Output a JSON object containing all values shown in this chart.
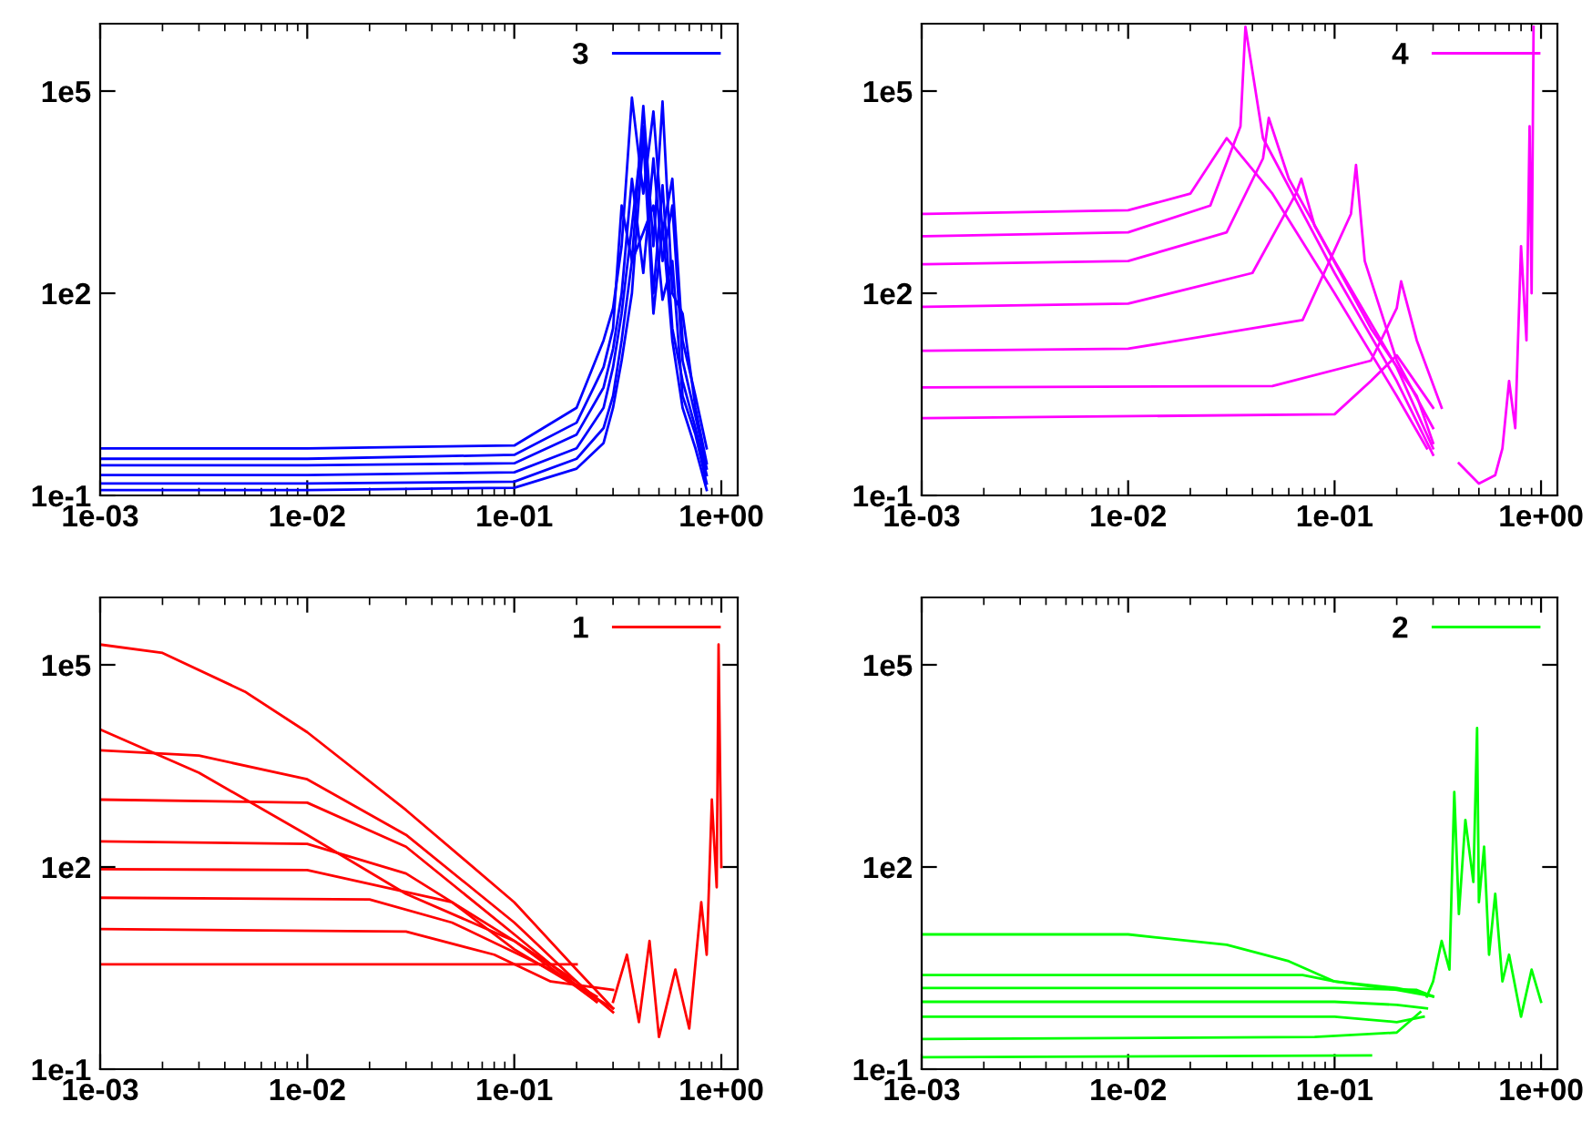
{
  "chart_data": [
    {
      "type": "line",
      "log": "xy",
      "grid": false,
      "legend": "top right",
      "xlim": [
        0.001,
        1.2
      ],
      "ylim": [
        0.1,
        1000000
      ],
      "xticks": [
        {
          "value": 0.001,
          "label": "1e-03"
        },
        {
          "value": 0.01,
          "label": "1e-02"
        },
        {
          "value": 0.1,
          "label": "1e-01"
        },
        {
          "value": 1,
          "label": "1e+00"
        }
      ],
      "yticks": [
        {
          "value": 0.1,
          "label": "1e-1"
        },
        {
          "value": 100,
          "label": "1e2"
        },
        {
          "value": 100000,
          "label": "1e5"
        }
      ],
      "series": [
        {
          "name": "3",
          "color": "#0000ff",
          "x": [
            0.001,
            0.01,
            0.1,
            0.2,
            0.27,
            0.3,
            0.33,
            0.37,
            0.42,
            0.47,
            0.52,
            0.58,
            0.65,
            0.75,
            0.85
          ],
          "values": [
            0.5,
            0.5,
            0.55,
            2,
            20,
            60,
            500,
            80000,
            3000,
            50000,
            800,
            5000,
            20,
            3,
            0.5
          ]
        },
        {
          "color": "#0000ff",
          "x": [
            0.001,
            0.01,
            0.1,
            0.2,
            0.27,
            0.3,
            0.33,
            0.37,
            0.42,
            0.47,
            0.52,
            0.58,
            0.65,
            0.75,
            0.85
          ],
          "values": [
            0.35,
            0.35,
            0.4,
            1.2,
            8,
            30,
            2000,
            300,
            60000,
            500,
            70000,
            100,
            50,
            2,
            0.3
          ]
        },
        {
          "color": "#0000ff",
          "x": [
            0.001,
            0.01,
            0.1,
            0.2,
            0.27,
            0.3,
            0.33,
            0.37,
            0.42,
            0.47,
            0.52,
            0.58,
            0.65,
            0.75,
            0.85
          ],
          "values": [
            0.28,
            0.28,
            0.3,
            0.8,
            4,
            15,
            100,
            5000,
            200,
            10000,
            300,
            2000,
            10,
            1.5,
            0.25
          ]
        },
        {
          "color": "#0000ff",
          "x": [
            0.001,
            0.01,
            0.1,
            0.2,
            0.27,
            0.3,
            0.33,
            0.37,
            0.42,
            0.47,
            0.52,
            0.58,
            0.65,
            0.75,
            0.85
          ],
          "values": [
            0.2,
            0.2,
            0.22,
            0.5,
            2,
            8,
            50,
            1000,
            30000,
            100,
            4000,
            30,
            5,
            1,
            0.2
          ]
        },
        {
          "color": "#0000ff",
          "x": [
            0.001,
            0.01,
            0.1,
            0.2,
            0.27,
            0.3,
            0.33,
            0.37,
            0.42,
            0.47,
            0.52,
            0.58,
            0.65,
            0.75,
            0.85
          ],
          "values": [
            0.15,
            0.15,
            0.16,
            0.35,
            1,
            3,
            20,
            300,
            800,
            2000,
            80,
            300,
            3,
            0.8,
            0.15
          ]
        },
        {
          "color": "#0000ff",
          "x": [
            0.001,
            0.01,
            0.1,
            0.2,
            0.27,
            0.3,
            0.33,
            0.37,
            0.42,
            0.47,
            0.52,
            0.58,
            0.65,
            0.75,
            0.85
          ],
          "values": [
            0.12,
            0.12,
            0.13,
            0.25,
            0.6,
            2,
            10,
            100,
            20000,
            50,
            1000,
            20,
            2,
            0.5,
            0.12
          ]
        }
      ]
    },
    {
      "type": "line",
      "log": "xy",
      "grid": false,
      "legend": "top right",
      "xlim": [
        0.001,
        1.2
      ],
      "ylim": [
        0.1,
        1000000
      ],
      "xticks": [
        {
          "value": 0.001,
          "label": "1e-03"
        },
        {
          "value": 0.01,
          "label": "1e-02"
        },
        {
          "value": 0.1,
          "label": "1e-01"
        },
        {
          "value": 1,
          "label": "1e+00"
        }
      ],
      "yticks": [
        {
          "value": 0.1,
          "label": "1e-1"
        },
        {
          "value": 100,
          "label": "1e2"
        },
        {
          "value": 100000,
          "label": "1e5"
        }
      ],
      "series": [
        {
          "name": "4",
          "color": "#ff00ff",
          "x": [
            0.001,
            0.01,
            0.02,
            0.03,
            0.05,
            0.1,
            0.2,
            0.28
          ],
          "values": [
            1500,
            1700,
            3000,
            20000,
            3000,
            100,
            3,
            0.5
          ]
        },
        {
          "color": "#ff00ff",
          "x": [
            0.001,
            0.01,
            0.025,
            0.035,
            0.037,
            0.045,
            0.1,
            0.2,
            0.3
          ],
          "values": [
            700,
            800,
            2000,
            30000,
            900000,
            20000,
            200,
            5,
            0.4
          ]
        },
        {
          "color": "#ff00ff",
          "x": [
            0.001,
            0.01,
            0.03,
            0.045,
            0.048,
            0.06,
            0.1,
            0.2,
            0.3
          ],
          "values": [
            270,
            300,
            800,
            10000,
            40000,
            5000,
            300,
            8,
            0.5
          ]
        },
        {
          "color": "#ff00ff",
          "x": [
            0.001,
            0.01,
            0.04,
            0.065,
            0.069,
            0.08,
            0.15,
            0.25,
            0.3
          ],
          "values": [
            63,
            70,
            200,
            3000,
            5000,
            1000,
            30,
            3,
            0.6
          ]
        },
        {
          "color": "#ff00ff",
          "x": [
            0.001,
            0.01,
            0.07,
            0.12,
            0.127,
            0.14,
            0.2,
            0.3
          ],
          "values": [
            14,
            15,
            40,
            1500,
            8000,
            300,
            10,
            1
          ]
        },
        {
          "color": "#ff00ff",
          "x": [
            0.001,
            0.05,
            0.15,
            0.2,
            0.21,
            0.25,
            0.33
          ],
          "values": [
            4,
            4.2,
            10,
            60,
            150,
            20,
            2
          ]
        },
        {
          "color": "#ff00ff",
          "x": [
            0.001,
            0.1,
            0.15,
            0.2,
            0.3
          ],
          "values": [
            1.4,
            1.6,
            5,
            12,
            2
          ]
        },
        {
          "color": "#ff00ff",
          "x": [
            0.4,
            0.5,
            0.6,
            0.65,
            0.7,
            0.75,
            0.8,
            0.85,
            0.88,
            0.9,
            0.92
          ],
          "values": [
            0.3,
            0.15,
            0.2,
            0.5,
            5,
            1,
            500,
            20,
            30000,
            100,
            900000
          ]
        }
      ]
    },
    {
      "type": "line",
      "log": "xy",
      "grid": false,
      "legend": "top right",
      "xlim": [
        0.001,
        1.2
      ],
      "ylim": [
        0.1,
        1000000
      ],
      "xticks": [
        {
          "value": 0.001,
          "label": "1e-03"
        },
        {
          "value": 0.01,
          "label": "1e-02"
        },
        {
          "value": 0.1,
          "label": "1e-01"
        },
        {
          "value": 1,
          "label": "1e+00"
        }
      ],
      "yticks": [
        {
          "value": 0.1,
          "label": "1e-1"
        },
        {
          "value": 100,
          "label": "1e2"
        },
        {
          "value": 100000,
          "label": "1e5"
        }
      ],
      "series": [
        {
          "name": "1",
          "color": "#ff0000",
          "x": [
            0.001,
            0.002,
            0.005,
            0.01,
            0.03,
            0.1,
            0.2,
            0.3
          ],
          "values": [
            200000,
            150000,
            40000,
            10000,
            700,
            30,
            3,
            0.8
          ]
        },
        {
          "color": "#ff0000",
          "x": [
            0.001,
            0.003,
            0.01,
            0.03,
            0.1,
            0.2,
            0.3
          ],
          "values": [
            11000,
            2500,
            300,
            40,
            8,
            2,
            0.7
          ]
        },
        {
          "color": "#ff0000",
          "x": [
            0.001,
            0.003,
            0.01,
            0.03,
            0.1,
            0.2
          ],
          "values": [
            5400,
            4500,
            2000,
            300,
            15,
            2
          ]
        },
        {
          "color": "#ff0000",
          "x": [
            0.001,
            0.01,
            0.03,
            0.1,
            0.25
          ],
          "values": [
            1000,
            900,
            200,
            10,
            1
          ]
        },
        {
          "color": "#ff0000",
          "x": [
            0.001,
            0.01,
            0.03,
            0.1,
            0.25
          ],
          "values": [
            240,
            220,
            80,
            8,
            1
          ]
        },
        {
          "color": "#ff0000",
          "x": [
            0.001,
            0.01,
            0.05,
            0.1,
            0.3
          ],
          "values": [
            93,
            90,
            30,
            6,
            0.8
          ]
        },
        {
          "color": "#ff0000",
          "x": [
            0.001,
            0.02,
            0.05,
            0.15,
            0.25
          ],
          "values": [
            35,
            33,
            15,
            3,
            1.2
          ]
        },
        {
          "color": "#ff0000",
          "x": [
            0.001,
            0.03,
            0.08,
            0.15,
            0.3
          ],
          "values": [
            12,
            11,
            5,
            2,
            1.5
          ]
        },
        {
          "color": "#ff0000",
          "x": [
            0.001,
            0.1,
            0.2
          ],
          "values": [
            3.6,
            3.6,
            3.6
          ]
        },
        {
          "color": "#ff0000",
          "x": [
            0.3,
            0.35,
            0.4,
            0.45,
            0.5,
            0.6,
            0.7,
            0.8,
            0.85,
            0.9,
            0.95,
            0.97,
            1.0
          ],
          "values": [
            1,
            5,
            0.5,
            8,
            0.3,
            3,
            0.4,
            30,
            5,
            1000,
            50,
            200000,
            100
          ]
        }
      ]
    },
    {
      "type": "line",
      "log": "xy",
      "grid": false,
      "legend": "top right",
      "xlim": [
        0.001,
        1.2
      ],
      "ylim": [
        0.1,
        1000000
      ],
      "xticks": [
        {
          "value": 0.001,
          "label": "1e-03"
        },
        {
          "value": 0.01,
          "label": "1e-02"
        },
        {
          "value": 0.1,
          "label": "1e-01"
        },
        {
          "value": 1,
          "label": "1e+00"
        }
      ],
      "yticks": [
        {
          "value": 0.1,
          "label": "1e-1"
        },
        {
          "value": 100,
          "label": "1e2"
        },
        {
          "value": 100000,
          "label": "1e5"
        }
      ],
      "series": [
        {
          "name": "2",
          "color": "#00ff00",
          "x": [
            0.001,
            0.01,
            0.03,
            0.06,
            0.1,
            0.2,
            0.3
          ],
          "values": [
            10,
            10,
            7,
            4,
            2,
            1.5,
            1.2
          ]
        },
        {
          "color": "#00ff00",
          "x": [
            0.001,
            0.07,
            0.1,
            0.2,
            0.28
          ],
          "values": [
            2.5,
            2.5,
            2,
            1.6,
            1.3
          ]
        },
        {
          "color": "#00ff00",
          "x": [
            0.001,
            0.1,
            0.25,
            0.3
          ],
          "values": [
            1.6,
            1.6,
            1.5,
            1.2
          ]
        },
        {
          "color": "#00ff00",
          "x": [
            0.001,
            0.1,
            0.2,
            0.28
          ],
          "values": [
            1,
            1,
            0.9,
            0.8
          ]
        },
        {
          "color": "#00ff00",
          "x": [
            0.001,
            0.1,
            0.2,
            0.27
          ],
          "values": [
            0.6,
            0.6,
            0.5,
            0.6
          ]
        },
        {
          "color": "#00ff00",
          "x": [
            0.001,
            0.08,
            0.2,
            0.26
          ],
          "values": [
            0.28,
            0.3,
            0.35,
            0.7
          ]
        },
        {
          "color": "#00ff00",
          "x": [
            0.001,
            0.15
          ],
          "values": [
            0.15,
            0.16
          ]
        },
        {
          "color": "#00ff00",
          "x": [
            0.28,
            0.3,
            0.33,
            0.36,
            0.38,
            0.4,
            0.43,
            0.47,
            0.49,
            0.5,
            0.53,
            0.56,
            0.6,
            0.65,
            0.7,
            0.8,
            0.9,
            1.0
          ],
          "values": [
            1.2,
            2,
            8,
            3,
            1300,
            20,
            500,
            60,
            11500,
            30,
            200,
            5,
            40,
            2,
            5,
            0.6,
            3,
            1
          ]
        }
      ]
    }
  ]
}
